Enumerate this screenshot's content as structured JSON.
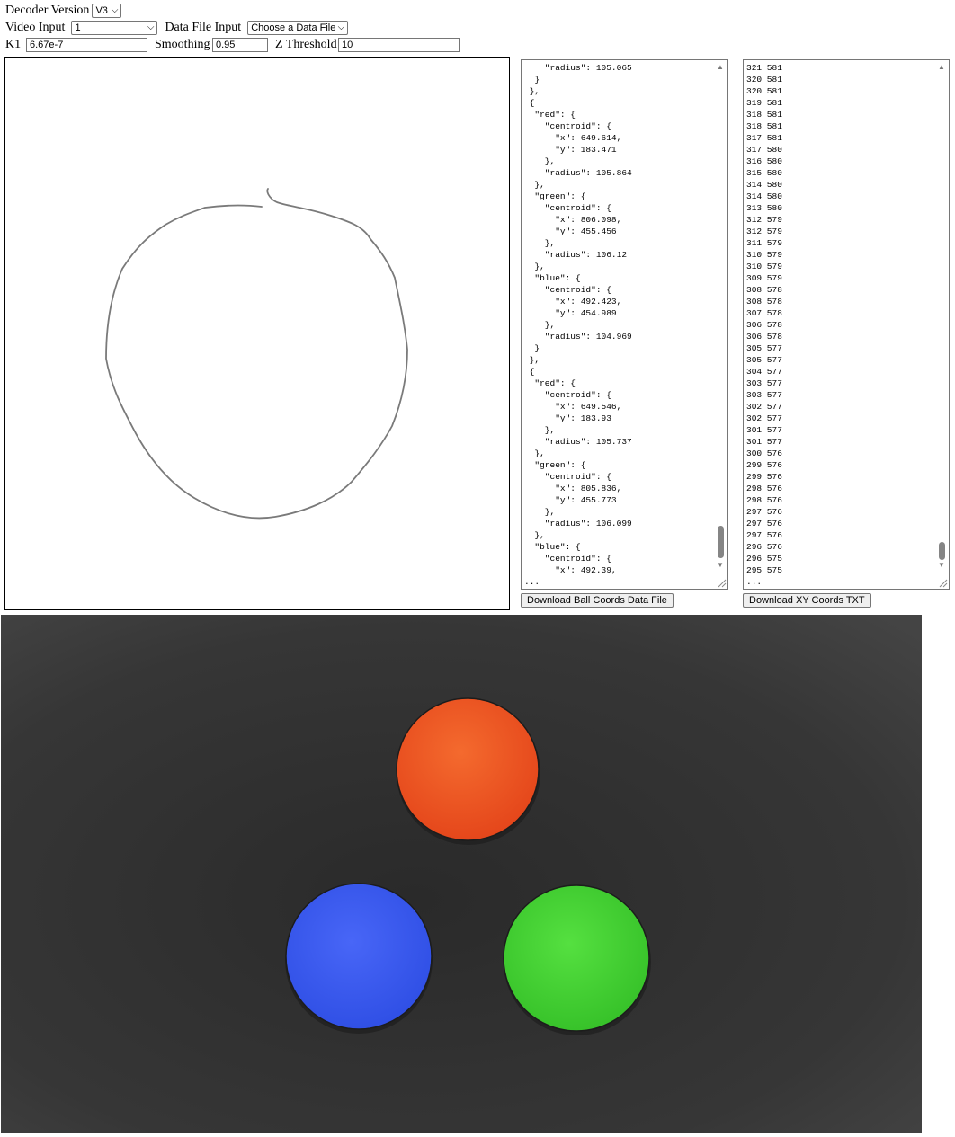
{
  "controls": {
    "decoder_version_label": "Decoder Version",
    "decoder_version_value": "V3",
    "video_input_label": "Video Input",
    "video_input_value": "1",
    "data_file_input_label": "Data File Input",
    "data_file_input_value": "Choose a Data File",
    "k1_label": "K1",
    "k1_value": "6.67e-7",
    "smoothing_label": "Smoothing",
    "smoothing_value": "0.95",
    "z_threshold_label": "Z Threshold",
    "z_threshold_value": "10"
  },
  "ball_coords_text": "    \"radius\": 105.065\n  }\n },\n {\n  \"red\": {\n    \"centroid\": {\n      \"x\": 649.614,\n      \"y\": 183.471\n    },\n    \"radius\": 105.864\n  },\n  \"green\": {\n    \"centroid\": {\n      \"x\": 806.098,\n      \"y\": 455.456\n    },\n    \"radius\": 106.12\n  },\n  \"blue\": {\n    \"centroid\": {\n      \"x\": 492.423,\n      \"y\": 454.989\n    },\n    \"radius\": 104.969\n  }\n },\n {\n  \"red\": {\n    \"centroid\": {\n      \"x\": 649.546,\n      \"y\": 183.93\n    },\n    \"radius\": 105.737\n  },\n  \"green\": {\n    \"centroid\": {\n      \"x\": 805.836,\n      \"y\": 455.773\n    },\n    \"radius\": 106.099\n  },\n  \"blue\": {\n    \"centroid\": {\n      \"x\": 492.39,\n...",
  "xy_coords_text": "321 581\n320 581\n320 581\n319 581\n318 581\n318 581\n317 581\n317 580\n316 580\n315 580\n314 580\n314 580\n313 580\n312 579\n312 579\n311 579\n310 579\n310 579\n309 579\n308 578\n308 578\n307 578\n306 578\n306 578\n305 577\n305 577\n304 577\n303 577\n303 577\n302 577\n302 577\n301 577\n301 577\n300 576\n299 576\n299 576\n298 576\n298 576\n297 576\n297 576\n297 576\n296 576\n296 575\n295 575\n...",
  "buttons": {
    "download_ball_coords": "Download Ball Coords Data File",
    "download_xy_coords": "Download XY Coords TXT"
  },
  "balls": {
    "red_color": "#f0521e",
    "green_color": "#46d633",
    "blue_color": "#3c5cf2"
  }
}
